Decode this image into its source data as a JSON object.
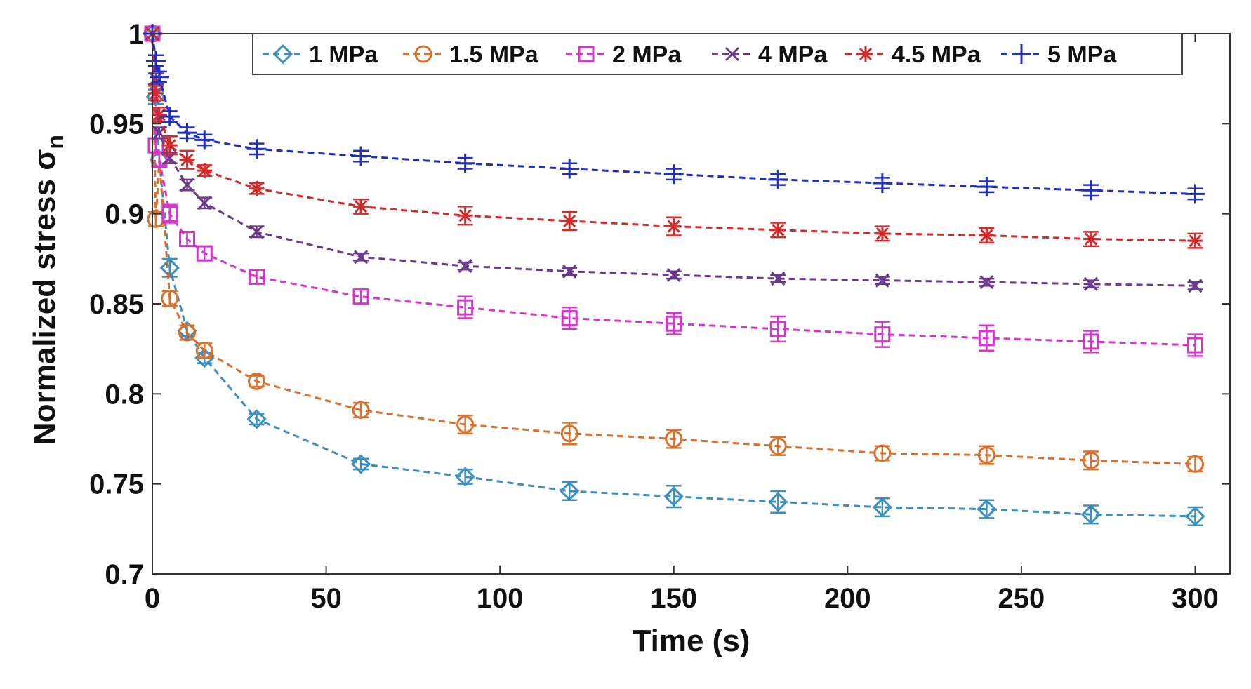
{
  "chart_data": {
    "type": "line",
    "xlabel": "Time (s)",
    "ylabel": "Normalized stress σ",
    "ylabel_subscript": "n",
    "xlim": [
      0,
      310
    ],
    "ylim": [
      0.7,
      1.0
    ],
    "xticks": [
      0,
      50,
      100,
      150,
      200,
      250,
      300
    ],
    "yticks": [
      0.7,
      0.75,
      0.8,
      0.85,
      0.9,
      0.95,
      1
    ],
    "xtick_labels": [
      "0",
      "50",
      "100",
      "150",
      "200",
      "250",
      "300"
    ],
    "ytick_labels": [
      "0.7",
      "0.75",
      "0.8",
      "0.85",
      "0.9",
      "0.95",
      "1"
    ],
    "grid": false,
    "legend_position": "top",
    "x": [
      0,
      1,
      2,
      5,
      10,
      15,
      30,
      60,
      90,
      120,
      150,
      180,
      210,
      240,
      270,
      300
    ],
    "series": [
      {
        "name": "1 MPa",
        "color": "#3a8fc0",
        "marker": "diamond",
        "values": [
          1.0,
          0.965,
          0.93,
          0.87,
          0.835,
          0.82,
          0.786,
          0.761,
          0.754,
          0.746,
          0.743,
          0.74,
          0.737,
          0.736,
          0.733,
          0.732
        ],
        "errors": [
          0,
          0.004,
          0.004,
          0.005,
          0.003,
          0.003,
          0.003,
          0.003,
          0.004,
          0.005,
          0.006,
          0.006,
          0.005,
          0.005,
          0.005,
          0.005
        ]
      },
      {
        "name": "1.5 MPa",
        "color": "#d9702c",
        "marker": "circle",
        "values": [
          1.0,
          0.897,
          0.93,
          0.853,
          0.834,
          0.824,
          0.807,
          0.791,
          0.783,
          0.778,
          0.775,
          0.771,
          0.767,
          0.766,
          0.763,
          0.761
        ],
        "errors": [
          0,
          0.004,
          0.004,
          0.004,
          0.004,
          0.004,
          0.003,
          0.004,
          0.005,
          0.006,
          0.005,
          0.005,
          0.004,
          0.005,
          0.005,
          0.004
        ]
      },
      {
        "name": "2 MPa",
        "color": "#d633cf",
        "marker": "square",
        "values": [
          1.0,
          0.938,
          0.93,
          0.9,
          0.886,
          0.878,
          0.865,
          0.854,
          0.848,
          0.842,
          0.839,
          0.836,
          0.833,
          0.831,
          0.829,
          0.827
        ],
        "errors": [
          0,
          0.004,
          0.004,
          0.005,
          0.004,
          0.004,
          0.004,
          0.004,
          0.006,
          0.006,
          0.006,
          0.007,
          0.007,
          0.007,
          0.006,
          0.006
        ]
      },
      {
        "name": "4 MPa",
        "color": "#6b3a8f",
        "marker": "x",
        "values": [
          1.0,
          0.975,
          0.945,
          0.931,
          0.916,
          0.906,
          0.89,
          0.876,
          0.871,
          0.868,
          0.866,
          0.864,
          0.863,
          0.862,
          0.861,
          0.86
        ],
        "errors": [
          0,
          0.003,
          0.003,
          0.003,
          0.003,
          0.003,
          0.003,
          0.002,
          0.002,
          0.002,
          0.002,
          0.002,
          0.002,
          0.002,
          0.002,
          0.002
        ]
      },
      {
        "name": "4.5 MPa",
        "color": "#d42a2a",
        "marker": "asterisk",
        "values": [
          1.0,
          0.967,
          0.955,
          0.938,
          0.93,
          0.924,
          0.914,
          0.904,
          0.899,
          0.896,
          0.893,
          0.891,
          0.889,
          0.888,
          0.886,
          0.885
        ],
        "errors": [
          0,
          0.004,
          0.004,
          0.005,
          0.005,
          0.003,
          0.003,
          0.004,
          0.005,
          0.005,
          0.005,
          0.004,
          0.004,
          0.004,
          0.004,
          0.004
        ]
      },
      {
        "name": "5 MPa",
        "color": "#1f2fbf",
        "marker": "plus",
        "values": [
          1.0,
          0.985,
          0.976,
          0.954,
          0.945,
          0.941,
          0.936,
          0.932,
          0.928,
          0.925,
          0.922,
          0.919,
          0.917,
          0.915,
          0.913,
          0.911
        ],
        "errors": [
          0,
          0.003,
          0.003,
          0.003,
          0.003,
          0.003,
          0.003,
          0.003,
          0.003,
          0.003,
          0.003,
          0.003,
          0.003,
          0.003,
          0.003,
          0.003
        ]
      }
    ]
  }
}
